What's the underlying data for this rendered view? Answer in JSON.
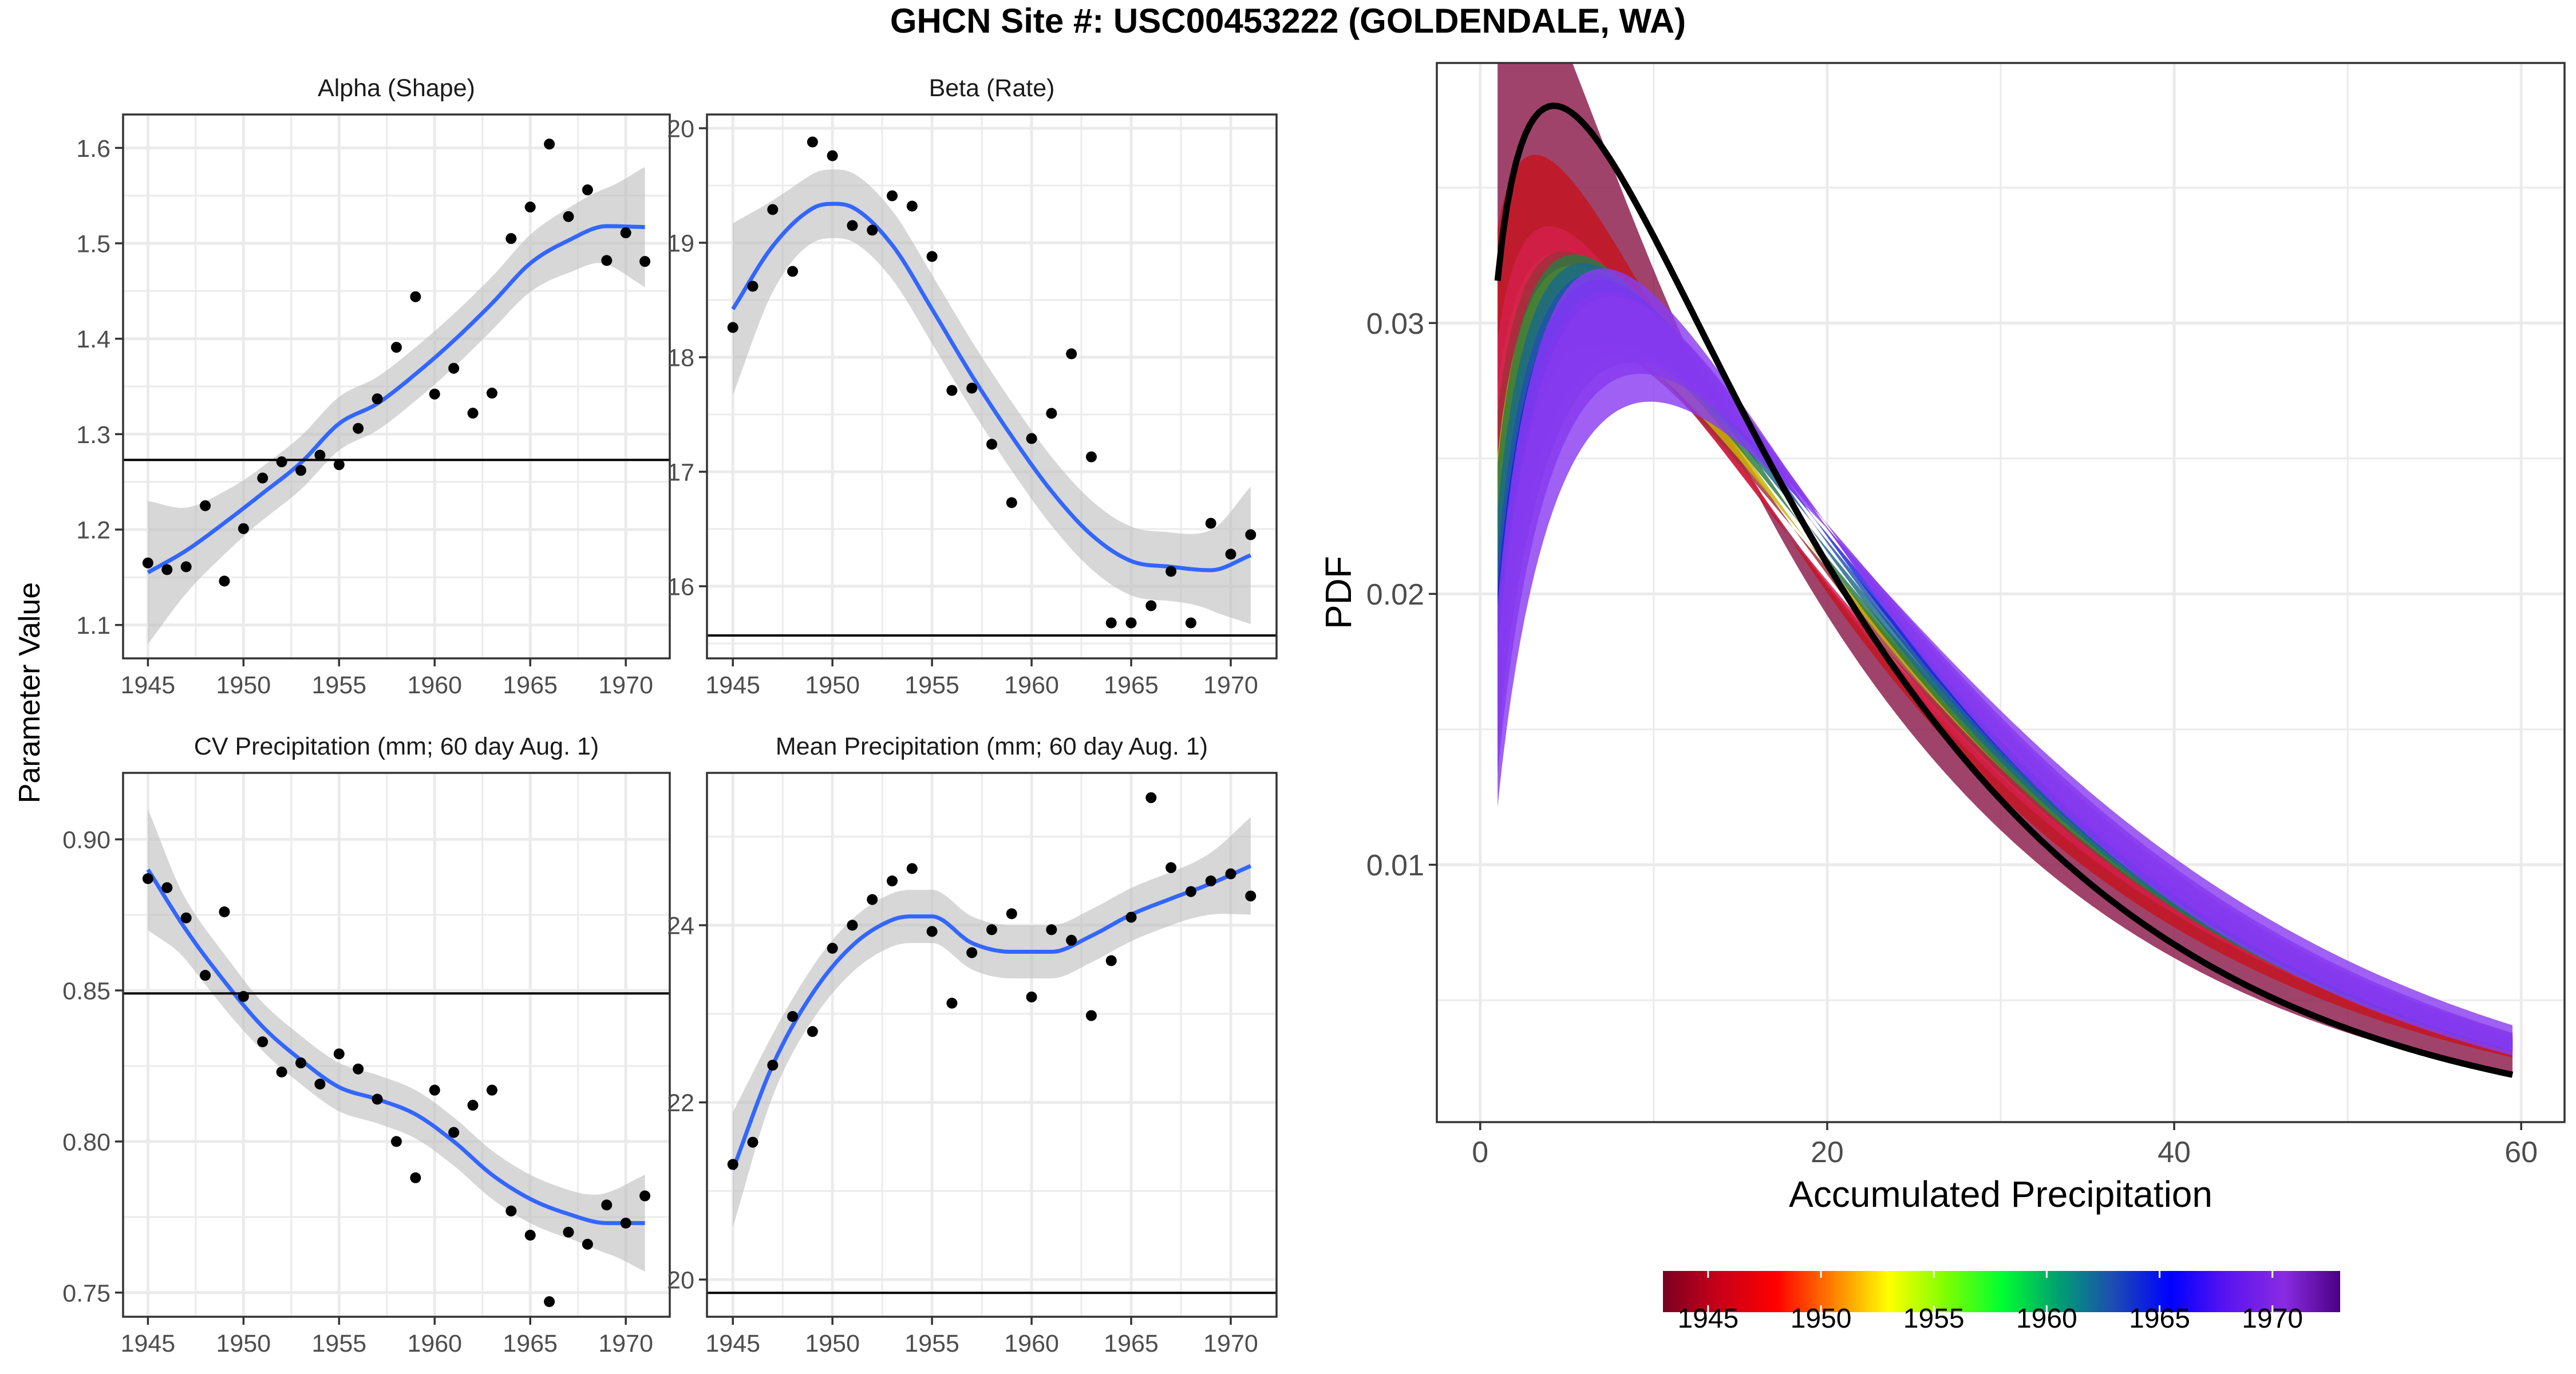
{
  "title": "GHCN Site #: USC00453222 (GOLDENDALE, WA)",
  "shared_ylabel": "Parameter Value",
  "colors": {
    "smooth_line": "#3366ff",
    "ribbon": "#bebebe",
    "points": "#000000",
    "reference_line": "#000000",
    "panel_grid": "#ebebeb",
    "year_scale": [
      "#7a0020",
      "#c80018",
      "#ff0000",
      "#ff7f00",
      "#ffff00",
      "#7fff00",
      "#00ff30",
      "#00a070",
      "#1c4bb3",
      "#0000ff",
      "#5a14f0",
      "#8a2be2",
      "#4b0082"
    ]
  },
  "chart_data": [
    {
      "id": "alpha",
      "type": "scatter",
      "title": "Alpha (Shape)",
      "xlim": [
        1943.7,
        1972.3
      ],
      "ylim": [
        1.065,
        1.635
      ],
      "xticks": [
        1945,
        1950,
        1955,
        1960,
        1965,
        1970
      ],
      "yticks": [
        1.1,
        1.2,
        1.3,
        1.4,
        1.5,
        1.6
      ],
      "ytick_labels": [
        "1.1",
        "1.2",
        "1.3",
        "1.4",
        "1.5",
        "1.6"
      ],
      "reference_line": 1.273,
      "x": [
        1945,
        1946,
        1947,
        1948,
        1949,
        1950,
        1951,
        1952,
        1953,
        1954,
        1955,
        1956,
        1957,
        1958,
        1959,
        1960,
        1961,
        1962,
        1963,
        1964,
        1965,
        1966,
        1967,
        1968,
        1969,
        1970,
        1971
      ],
      "y": [
        1.165,
        1.158,
        1.161,
        1.225,
        1.146,
        1.201,
        1.254,
        1.271,
        1.262,
        1.278,
        1.268,
        1.306,
        1.337,
        1.391,
        1.444,
        1.342,
        1.369,
        1.322,
        1.343,
        1.505,
        1.538,
        1.604,
        1.528,
        1.556,
        1.482,
        1.511,
        1.481
      ],
      "smooth_x": [
        1945,
        1947,
        1949,
        1951,
        1953,
        1955,
        1957,
        1959,
        1961,
        1963,
        1965,
        1967,
        1969,
        1971
      ],
      "smooth_y": [
        1.155,
        1.178,
        1.207,
        1.238,
        1.27,
        1.311,
        1.332,
        1.363,
        1.398,
        1.437,
        1.479,
        1.503,
        1.518,
        1.517
      ],
      "band_half": [
        0.075,
        0.045,
        0.033,
        0.028,
        0.028,
        0.028,
        0.028,
        0.028,
        0.028,
        0.028,
        0.03,
        0.034,
        0.04,
        0.063
      ]
    },
    {
      "id": "beta",
      "type": "scatter",
      "title": "Beta (Rate)",
      "xlim": [
        1943.7,
        1972.3
      ],
      "ylim": [
        15.37,
        20.12
      ],
      "xticks": [
        1945,
        1950,
        1955,
        1960,
        1965,
        1970
      ],
      "yticks": [
        16,
        17,
        18,
        19,
        20
      ],
      "ytick_labels": [
        "16",
        "17",
        "18",
        "19",
        "20"
      ],
      "reference_line": 15.57,
      "x": [
        1945,
        1946,
        1947,
        1948,
        1949,
        1950,
        1951,
        1952,
        1953,
        1954,
        1955,
        1956,
        1957,
        1958,
        1959,
        1960,
        1961,
        1962,
        1963,
        1964,
        1965,
        1966,
        1967,
        1968,
        1969,
        1970,
        1971
      ],
      "y": [
        18.26,
        18.62,
        19.29,
        18.75,
        19.88,
        19.76,
        19.15,
        19.11,
        19.41,
        19.32,
        18.88,
        17.71,
        17.73,
        17.24,
        16.73,
        17.29,
        17.51,
        18.03,
        17.13,
        15.68,
        15.68,
        15.83,
        16.13,
        15.68,
        16.55,
        16.28,
        16.45
      ],
      "smooth_x": [
        1945,
        1947,
        1949,
        1950,
        1951,
        1953,
        1955,
        1957,
        1959,
        1961,
        1963,
        1965,
        1967,
        1969,
        1971
      ],
      "smooth_y": [
        18.42,
        18.97,
        19.3,
        19.34,
        19.31,
        18.98,
        18.42,
        17.84,
        17.31,
        16.83,
        16.45,
        16.22,
        16.17,
        16.14,
        16.27
      ],
      "band_half": [
        0.75,
        0.4,
        0.3,
        0.3,
        0.3,
        0.3,
        0.3,
        0.3,
        0.3,
        0.3,
        0.3,
        0.3,
        0.3,
        0.35,
        0.6
      ]
    },
    {
      "id": "cv",
      "type": "scatter",
      "title": "CV Precipitation (mm; 60 day Aug. 1)",
      "xlim": [
        1943.7,
        1972.3
      ],
      "ylim": [
        0.742,
        0.922
      ],
      "xticks": [
        1945,
        1950,
        1955,
        1960,
        1965,
        1970
      ],
      "yticks": [
        0.75,
        0.8,
        0.85,
        0.9
      ],
      "ytick_labels": [
        "0.75",
        "0.80",
        "0.85",
        "0.90"
      ],
      "reference_line": 0.849,
      "x": [
        1945,
        1946,
        1947,
        1948,
        1949,
        1950,
        1951,
        1952,
        1953,
        1954,
        1955,
        1956,
        1957,
        1958,
        1959,
        1960,
        1961,
        1962,
        1963,
        1964,
        1965,
        1966,
        1967,
        1968,
        1969,
        1970,
        1971
      ],
      "y": [
        0.887,
        0.884,
        0.874,
        0.855,
        0.876,
        0.848,
        0.833,
        0.823,
        0.826,
        0.819,
        0.829,
        0.824,
        0.814,
        0.8,
        0.788,
        0.817,
        0.803,
        0.812,
        0.817,
        0.777,
        0.769,
        0.747,
        0.77,
        0.766,
        0.779,
        0.773,
        0.782
      ],
      "smooth_x": [
        1945,
        1947,
        1949,
        1951,
        1953,
        1955,
        1957,
        1959,
        1961,
        1963,
        1965,
        1967,
        1969,
        1971
      ],
      "smooth_y": [
        0.89,
        0.87,
        0.853,
        0.838,
        0.827,
        0.818,
        0.814,
        0.809,
        0.8,
        0.789,
        0.781,
        0.776,
        0.773,
        0.773
      ],
      "band_half": [
        0.02,
        0.01,
        0.009,
        0.008,
        0.008,
        0.008,
        0.008,
        0.008,
        0.008,
        0.008,
        0.008,
        0.008,
        0.01,
        0.016
      ]
    },
    {
      "id": "mean",
      "type": "scatter",
      "title": "Mean Precipitation (mm; 60 day Aug. 1)",
      "xlim": [
        1943.7,
        1972.3
      ],
      "ylim": [
        19.58,
        25.72
      ],
      "xticks": [
        1945,
        1950,
        1955,
        1960,
        1965,
        1970
      ],
      "yticks": [
        20,
        22,
        24
      ],
      "ytick_labels": [
        "20",
        "22",
        "24"
      ],
      "reference_line": 19.85,
      "x": [
        1945,
        1946,
        1947,
        1948,
        1949,
        1950,
        1951,
        1952,
        1953,
        1954,
        1955,
        1956,
        1957,
        1958,
        1959,
        1960,
        1961,
        1962,
        1963,
        1964,
        1965,
        1966,
        1967,
        1968,
        1969,
        1970,
        1971
      ],
      "y": [
        21.3,
        21.55,
        22.42,
        22.97,
        22.8,
        23.74,
        24.0,
        24.29,
        24.5,
        24.64,
        23.93,
        23.12,
        23.69,
        23.95,
        24.13,
        23.19,
        23.95,
        23.83,
        22.98,
        23.6,
        24.09,
        25.44,
        24.65,
        24.38,
        24.5,
        24.58,
        24.33
      ],
      "smooth_x": [
        1945,
        1947,
        1949,
        1951,
        1953,
        1954,
        1955,
        1957,
        1959,
        1961,
        1963,
        1965,
        1967,
        1969,
        1971
      ],
      "smooth_y": [
        21.24,
        22.42,
        23.23,
        23.77,
        24.06,
        24.1,
        24.1,
        23.8,
        23.7,
        23.7,
        23.88,
        24.12,
        24.3,
        24.47,
        24.67
      ],
      "band_half": [
        0.65,
        0.35,
        0.3,
        0.3,
        0.3,
        0.3,
        0.3,
        0.3,
        0.3,
        0.3,
        0.3,
        0.3,
        0.3,
        0.35,
        0.55
      ]
    },
    {
      "id": "pdf",
      "type": "line",
      "xlabel": "Accumulated Precipitation",
      "ylabel": "PDF",
      "xlim": [
        -2.5,
        62.5
      ],
      "ylim": [
        0.0005,
        0.0396
      ],
      "xticks": [
        0,
        20,
        40,
        60
      ],
      "yticks": [
        0.01,
        0.02,
        0.03
      ],
      "ytick_labels": [
        "0.01",
        "0.02",
        "0.03"
      ],
      "x_range": [
        1,
        59.5
      ],
      "reference_gamma": {
        "alpha": 1.273,
        "beta": 15.57
      },
      "year_bands": [
        {
          "year": 1945,
          "color": "#8b1a4a",
          "alpha": [
            1.08,
            1.23
          ],
          "beta": [
            17.7,
            19.1
          ]
        },
        {
          "year": 1948,
          "color": "#c4141e",
          "alpha": [
            1.17,
            1.25
          ],
          "beta": [
            18.6,
            19.7
          ]
        },
        {
          "year": 1951,
          "color": "#d61f4a",
          "alpha": [
            1.21,
            1.27
          ],
          "beta": [
            19.0,
            19.6
          ]
        },
        {
          "year": 1954,
          "color": "#a0303a",
          "alpha": [
            1.26,
            1.34
          ],
          "beta": [
            18.4,
            19.0
          ]
        },
        {
          "year": 1956,
          "color": "#c8b400",
          "alpha": [
            1.29,
            1.35
          ],
          "beta": [
            18.1,
            18.7
          ]
        },
        {
          "year": 1958,
          "color": "#2a7a40",
          "alpha": [
            1.31,
            1.37
          ],
          "beta": [
            17.5,
            18.1
          ]
        },
        {
          "year": 1960,
          "color": "#1a6a8a",
          "alpha": [
            1.35,
            1.41
          ],
          "beta": [
            17.0,
            17.6
          ]
        },
        {
          "year": 1962,
          "color": "#2050b0",
          "alpha": [
            1.39,
            1.45
          ],
          "beta": [
            16.6,
            17.2
          ]
        },
        {
          "year": 1964,
          "color": "#1f1fe0",
          "alpha": [
            1.42,
            1.49
          ],
          "beta": [
            16.3,
            16.9
          ]
        },
        {
          "year": 1966,
          "color": "#5a1fe0",
          "alpha": [
            1.46,
            1.53
          ],
          "beta": [
            16.0,
            16.6
          ]
        },
        {
          "year": 1968,
          "color": "#7a2ee8",
          "alpha": [
            1.48,
            1.56
          ],
          "beta": [
            15.85,
            16.5
          ]
        },
        {
          "year": 1971,
          "color": "#8a3df0",
          "alpha": [
            1.45,
            1.58
          ],
          "beta": [
            15.7,
            16.9
          ]
        }
      ]
    }
  ],
  "colorbar": {
    "ticks": [
      1945,
      1950,
      1955,
      1960,
      1965,
      1970
    ],
    "labels": [
      "1945",
      "1950",
      "1955",
      "1960",
      "1965",
      "1970"
    ],
    "range": [
      1943,
      1973
    ]
  }
}
